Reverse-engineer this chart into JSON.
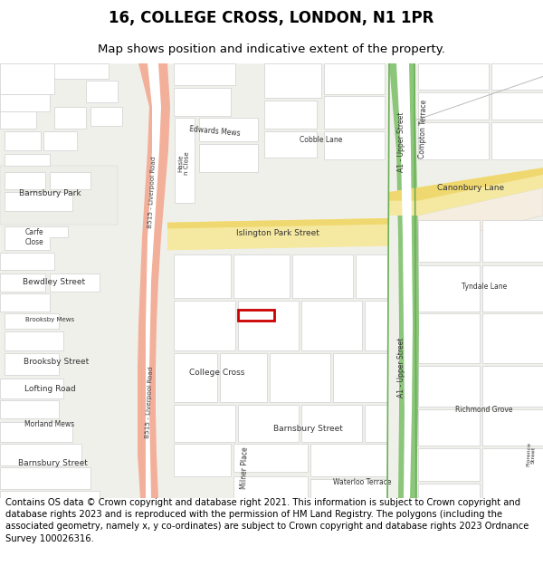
{
  "title": "16, COLLEGE CROSS, LONDON, N1 1PR",
  "subtitle": "Map shows position and indicative extent of the property.",
  "footer": "Contains OS data © Crown copyright and database right 2021. This information is subject to Crown copyright and database rights 2023 and is reproduced with the permission of HM Land Registry. The polygons (including the associated geometry, namely x, y co-ordinates) are subject to Crown copyright and database rights 2023 Ordnance Survey 100026316.",
  "bg": "#f0f0eb",
  "wh": "#ffffff",
  "be": "#d0d0d0",
  "re": "#c0c0c0",
  "liverpool_road_fill": "#f2b09a",
  "liverpool_road_center": "#ffffff",
  "a1_fill": "#8bc67a",
  "a1_center": "#ffffff",
  "islington_fill": "#f5e8a0",
  "canonbury_fill": "#f5e8a0",
  "prop_color": "#cc0000",
  "title_fs": 12,
  "sub_fs": 9.5,
  "foot_fs": 7.2,
  "label_fs": 6.5,
  "small_label_fs": 5.5
}
